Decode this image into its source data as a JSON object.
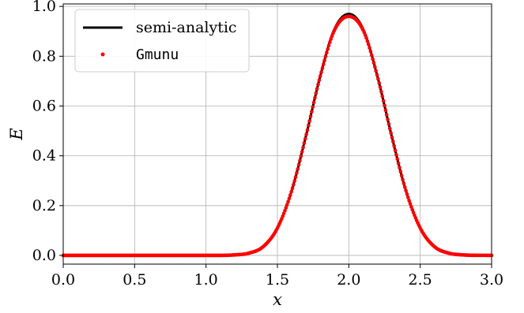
{
  "chart_data": {
    "type": "line",
    "xlabel": "x",
    "ylabel": "E",
    "xlim": [
      0.0,
      3.0
    ],
    "ylim": [
      -0.035,
      1.01
    ],
    "xticks": [
      "0.0",
      "0.5",
      "1.0",
      "1.5",
      "2.0",
      "2.5",
      "3.0"
    ],
    "yticks": [
      "0.0",
      "0.2",
      "0.4",
      "0.6",
      "0.8",
      "1.0"
    ],
    "grid": true,
    "legend_position": "top-left",
    "series": [
      {
        "name": "semi-analytic",
        "style": "line",
        "color": "#000000",
        "x": [
          0.0,
          0.5,
          1.0,
          1.2,
          1.3,
          1.4,
          1.5,
          1.6,
          1.7,
          1.8,
          1.9,
          2.0,
          2.1,
          2.2,
          2.3,
          2.4,
          2.5,
          2.6,
          2.7,
          2.8,
          3.0
        ],
        "y": [
          0.0,
          0.0,
          0.0,
          0.002,
          0.009,
          0.035,
          0.11,
          0.26,
          0.48,
          0.72,
          0.91,
          0.97,
          0.91,
          0.72,
          0.48,
          0.26,
          0.11,
          0.035,
          0.009,
          0.002,
          0.0
        ]
      },
      {
        "name": "Gmunu",
        "style": "points",
        "color": "#ff0000",
        "x": [
          0.0,
          0.5,
          1.0,
          1.2,
          1.3,
          1.4,
          1.5,
          1.6,
          1.7,
          1.8,
          1.9,
          2.0,
          2.1,
          2.2,
          2.3,
          2.4,
          2.5,
          2.6,
          2.7,
          2.8,
          3.0
        ],
        "y": [
          0.0,
          0.0,
          0.0,
          0.002,
          0.009,
          0.035,
          0.11,
          0.26,
          0.48,
          0.72,
          0.905,
          0.96,
          0.905,
          0.72,
          0.48,
          0.26,
          0.11,
          0.035,
          0.009,
          0.002,
          0.0
        ]
      }
    ]
  }
}
